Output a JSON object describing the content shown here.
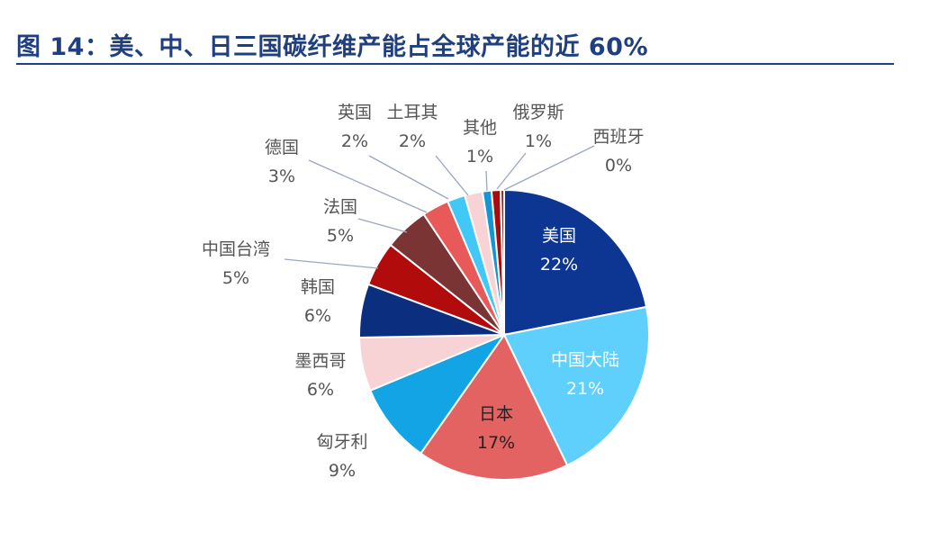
{
  "title": "图 14：美、中、日三国碳纤维产能占全球产能的近 60%",
  "chart_data": {
    "type": "pie",
    "title": "图 14：美、中、日三国碳纤维产能占全球产能的近 60%",
    "legend": "none",
    "slices": [
      {
        "label": "美国",
        "value": 22,
        "display": "22%",
        "color": "#0d3592"
      },
      {
        "label": "中国大陆",
        "value": 21,
        "display": "21%",
        "color": "#5fd0fb"
      },
      {
        "label": "日本",
        "value": 17,
        "display": "17%",
        "color": "#e36363"
      },
      {
        "label": "匈牙利",
        "value": 9,
        "display": "9%",
        "color": "#12a4e4"
      },
      {
        "label": "墨西哥",
        "value": 6,
        "display": "6%",
        "color": "#f7d3d6"
      },
      {
        "label": "韩国",
        "value": 6,
        "display": "6%",
        "color": "#0b2f7e"
      },
      {
        "label": "中国台湾",
        "value": 5,
        "display": "5%",
        "color": "#b20b0b"
      },
      {
        "label": "法国",
        "value": 5,
        "display": "5%",
        "color": "#7b3434"
      },
      {
        "label": "德国",
        "value": 3,
        "display": "3%",
        "color": "#e85959"
      },
      {
        "label": "英国",
        "value": 2,
        "display": "2%",
        "color": "#42c8f6"
      },
      {
        "label": "土耳其",
        "value": 2,
        "display": "2%",
        "color": "#f7d3d6"
      },
      {
        "label": "其他",
        "value": 1,
        "display": "1%",
        "color": "#1496d6"
      },
      {
        "label": "俄罗斯",
        "value": 1,
        "display": "1%",
        "color": "#a80d0d"
      },
      {
        "label": "西班牙",
        "value": 0,
        "display": "0%",
        "color": "#8a3030"
      }
    ]
  }
}
